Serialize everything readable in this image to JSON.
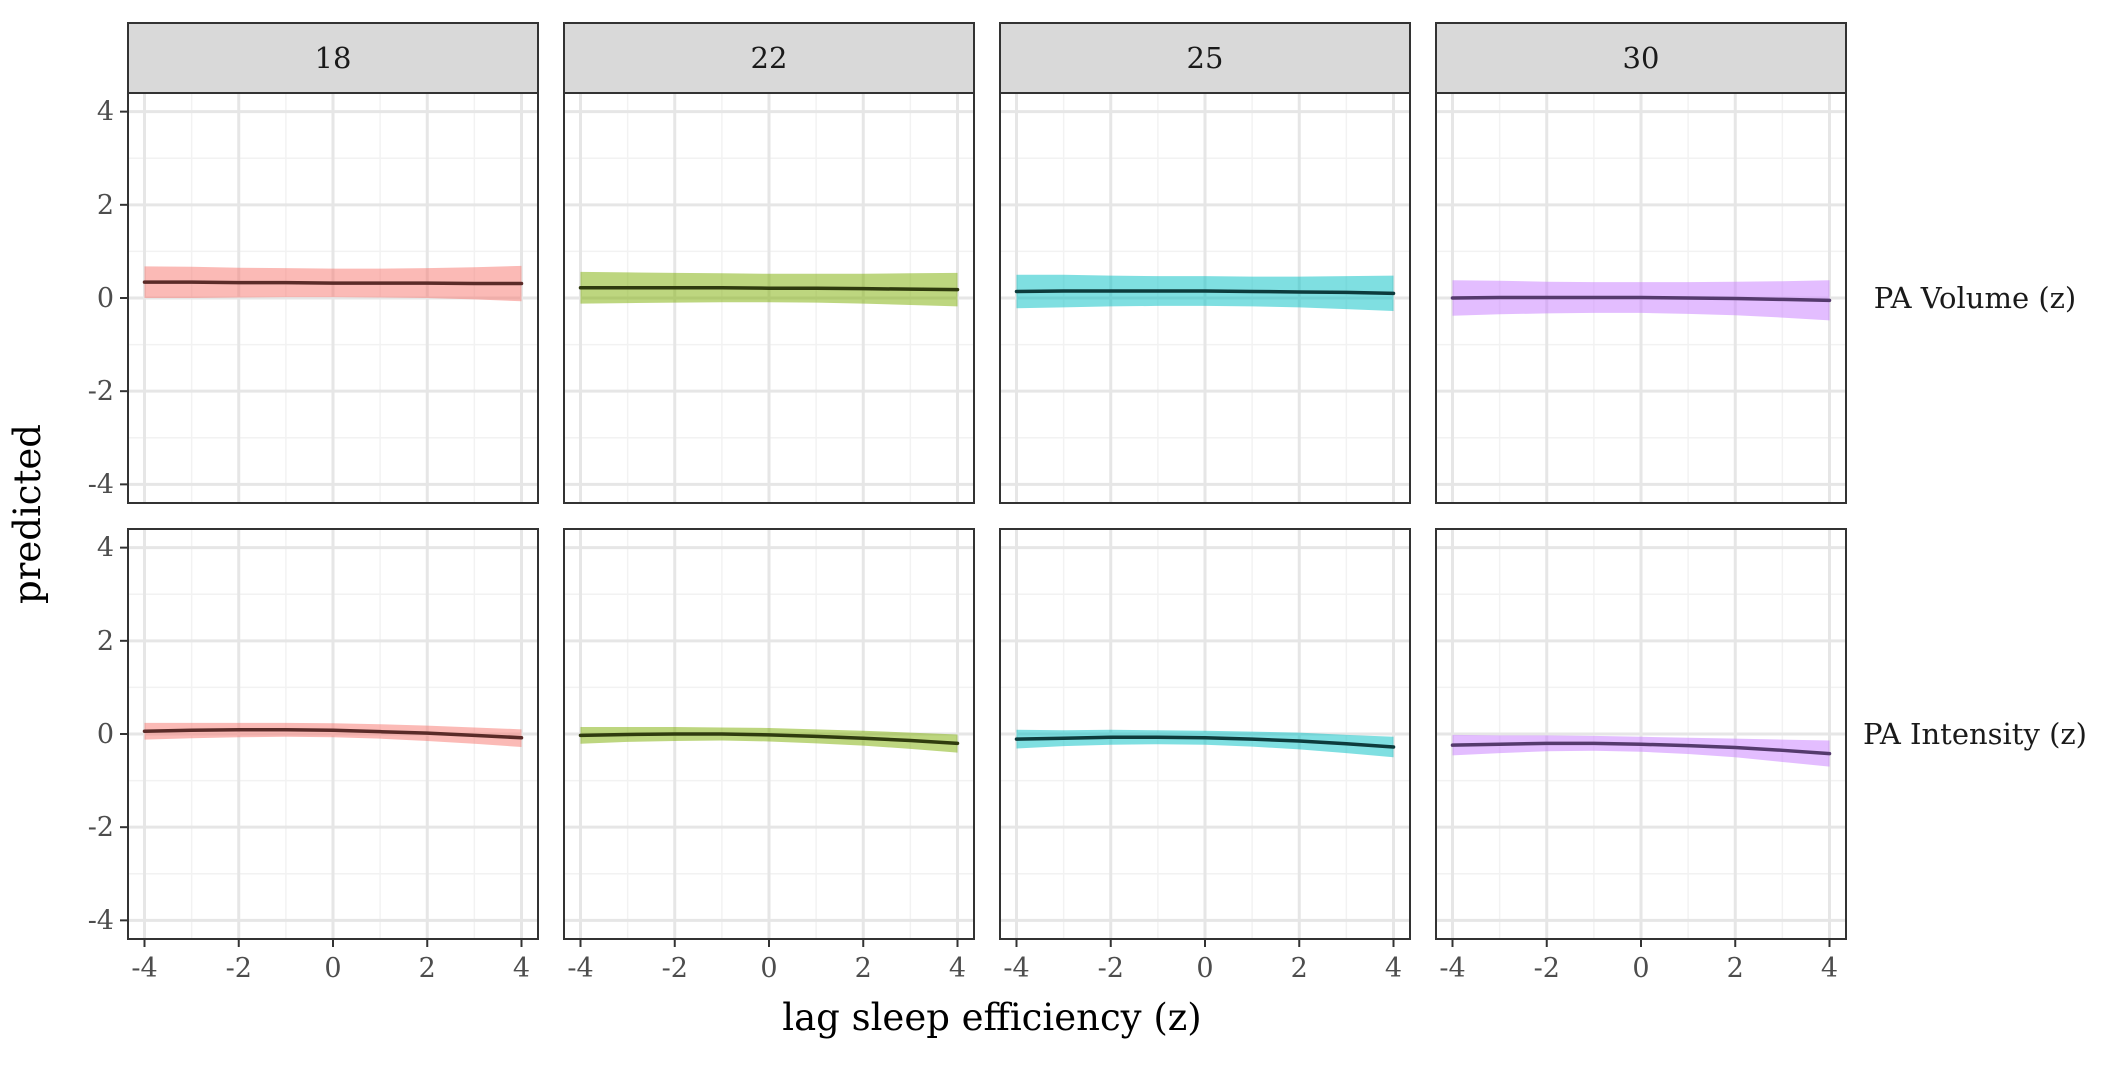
{
  "chart_data": {
    "type": "line",
    "xlabel": "lag sleep efficiency (z)",
    "ylabel": "predicted",
    "xlim": [
      -4.35,
      4.35
    ],
    "ylim": [
      -4.4,
      4.4
    ],
    "x_ticks": [
      -4,
      -2,
      0,
      2,
      4
    ],
    "y_ticks": [
      -4,
      -2,
      0,
      2,
      4
    ],
    "x_tick_labels": [
      "-4",
      "-2",
      "0",
      "2",
      "4"
    ],
    "y_tick_labels": [
      "-4",
      "-2",
      "0",
      "2",
      "4"
    ],
    "grid": true,
    "x": [
      -4,
      -3,
      -2,
      -1,
      0,
      1,
      2,
      3,
      4
    ],
    "column_facets": [
      "18",
      "22",
      "25",
      "30"
    ],
    "row_facets": [
      "PA Volume (z)",
      "PA Intensity (z)"
    ],
    "series_colors": {
      "18": "#F8766D",
      "22": "#7CAE00",
      "25": "#00BFC4",
      "30": "#C77CFF"
    },
    "line_colors": {
      "18": "#5a2b28",
      "22": "#2f3b0e",
      "25": "#0d3b3c",
      "30": "#553a6d"
    },
    "panels": [
      {
        "row": "PA Volume (z)",
        "col": "18",
        "fit": [
          0.34,
          0.34,
          0.33,
          0.33,
          0.32,
          0.32,
          0.32,
          0.31,
          0.31
        ],
        "lower": [
          0.0,
          0.0,
          0.01,
          0.02,
          0.02,
          0.01,
          0.0,
          -0.03,
          -0.07
        ],
        "upper": [
          0.68,
          0.67,
          0.65,
          0.64,
          0.63,
          0.63,
          0.64,
          0.66,
          0.69
        ]
      },
      {
        "row": "PA Volume (z)",
        "col": "22",
        "fit": [
          0.22,
          0.22,
          0.22,
          0.22,
          0.21,
          0.21,
          0.2,
          0.19,
          0.18
        ],
        "lower": [
          -0.12,
          -0.11,
          -0.1,
          -0.09,
          -0.09,
          -0.1,
          -0.12,
          -0.15,
          -0.18
        ],
        "upper": [
          0.56,
          0.55,
          0.54,
          0.53,
          0.52,
          0.52,
          0.52,
          0.53,
          0.54
        ]
      },
      {
        "row": "PA Volume (z)",
        "col": "25",
        "fit": [
          0.14,
          0.15,
          0.15,
          0.15,
          0.15,
          0.14,
          0.13,
          0.12,
          0.1
        ],
        "lower": [
          -0.22,
          -0.2,
          -0.18,
          -0.17,
          -0.17,
          -0.18,
          -0.2,
          -0.24,
          -0.28
        ],
        "upper": [
          0.5,
          0.5,
          0.48,
          0.47,
          0.47,
          0.46,
          0.46,
          0.47,
          0.48
        ]
      },
      {
        "row": "PA Volume (z)",
        "col": "30",
        "fit": [
          0.0,
          0.01,
          0.01,
          0.01,
          0.01,
          0.0,
          -0.01,
          -0.03,
          -0.05
        ],
        "lower": [
          -0.38,
          -0.35,
          -0.33,
          -0.32,
          -0.32,
          -0.34,
          -0.37,
          -0.42,
          -0.48
        ],
        "upper": [
          0.38,
          0.37,
          0.35,
          0.34,
          0.34,
          0.34,
          0.35,
          0.36,
          0.38
        ]
      },
      {
        "row": "PA Intensity (z)",
        "col": "18",
        "fit": [
          0.06,
          0.08,
          0.09,
          0.09,
          0.08,
          0.05,
          0.02,
          -0.03,
          -0.08
        ],
        "lower": [
          -0.12,
          -0.09,
          -0.07,
          -0.06,
          -0.07,
          -0.1,
          -0.15,
          -0.21,
          -0.28
        ],
        "upper": [
          0.24,
          0.24,
          0.24,
          0.24,
          0.23,
          0.21,
          0.18,
          0.14,
          0.1
        ]
      },
      {
        "row": "PA Intensity (z)",
        "col": "22",
        "fit": [
          -0.03,
          -0.01,
          0.0,
          0.0,
          -0.02,
          -0.05,
          -0.09,
          -0.14,
          -0.2
        ],
        "lower": [
          -0.21,
          -0.17,
          -0.15,
          -0.14,
          -0.16,
          -0.2,
          -0.25,
          -0.32,
          -0.4
        ],
        "upper": [
          0.15,
          0.15,
          0.15,
          0.14,
          0.13,
          0.1,
          0.07,
          0.03,
          -0.01
        ]
      },
      {
        "row": "PA Intensity (z)",
        "col": "25",
        "fit": [
          -0.11,
          -0.09,
          -0.07,
          -0.07,
          -0.08,
          -0.11,
          -0.15,
          -0.21,
          -0.28
        ],
        "lower": [
          -0.31,
          -0.26,
          -0.23,
          -0.22,
          -0.23,
          -0.27,
          -0.33,
          -0.41,
          -0.5
        ],
        "upper": [
          0.09,
          0.08,
          0.09,
          0.08,
          0.07,
          0.05,
          0.03,
          -0.02,
          -0.06
        ]
      },
      {
        "row": "PA Intensity (z)",
        "col": "30",
        "fit": [
          -0.24,
          -0.22,
          -0.2,
          -0.2,
          -0.22,
          -0.25,
          -0.29,
          -0.35,
          -0.42
        ],
        "lower": [
          -0.46,
          -0.41,
          -0.37,
          -0.36,
          -0.38,
          -0.43,
          -0.5,
          -0.6,
          -0.7
        ],
        "upper": [
          -0.02,
          -0.03,
          -0.03,
          -0.04,
          -0.06,
          -0.08,
          -0.1,
          -0.12,
          -0.14
        ]
      }
    ]
  }
}
